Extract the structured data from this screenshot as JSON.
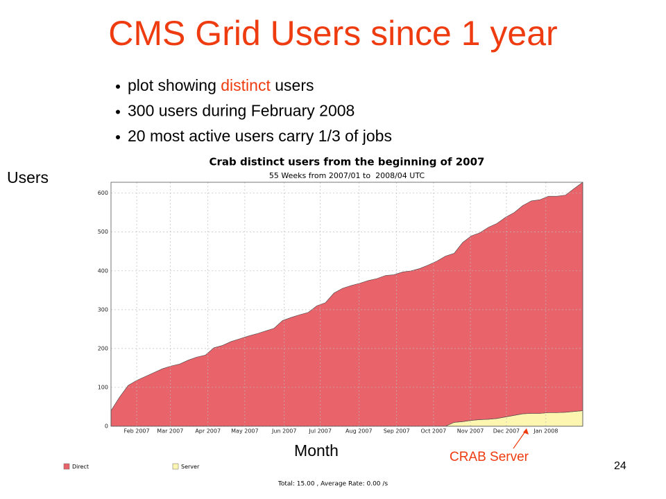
{
  "slide": {
    "title": "CMS Grid Users since 1 year",
    "bullets": [
      [
        "plot showing ",
        "distinct",
        " users"
      ],
      [
        "300 users during February 2008"
      ],
      [
        "20 most active users carry 1/3 of jobs"
      ]
    ],
    "y_caption": "Users",
    "x_caption": "Month",
    "annotation": "CRAB Server",
    "page_number": "24"
  },
  "chart_data": {
    "type": "stacked_area",
    "title": "Crab distinct users from the beginning of 2007",
    "subtitle": "55 Weeks from 2007/01 to  2008/04 UTC",
    "footer": "Total: 15.00 , Average Rate: 0.00 /s",
    "x": [
      0,
      1,
      2,
      3,
      4,
      5,
      6,
      7,
      8,
      9,
      10,
      11,
      12,
      13,
      14,
      15,
      16,
      17,
      18,
      19,
      20,
      21,
      22,
      23,
      24,
      25,
      26,
      27,
      28,
      29,
      30,
      31,
      32,
      33,
      34,
      35,
      36,
      37,
      38,
      39,
      40,
      41,
      42,
      43,
      44,
      45,
      46,
      47,
      48,
      49,
      50,
      51,
      52,
      53,
      54,
      55
    ],
    "xlim": [
      0,
      55
    ],
    "xticks": [
      {
        "value": 3.0,
        "label": "Feb 2007"
      },
      {
        "value": 6.9,
        "label": "Mar 2007"
      },
      {
        "value": 11.3,
        "label": "Apr 2007"
      },
      {
        "value": 15.6,
        "label": "May 2007"
      },
      {
        "value": 20.2,
        "label": "Jun 2007"
      },
      {
        "value": 24.4,
        "label": "Jul 2007"
      },
      {
        "value": 28.9,
        "label": "Aug 2007"
      },
      {
        "value": 33.3,
        "label": "Sep 2007"
      },
      {
        "value": 37.6,
        "label": "Oct 2007"
      },
      {
        "value": 41.9,
        "label": "Nov 2007"
      },
      {
        "value": 46.1,
        "label": "Dec 2007"
      },
      {
        "value": 50.7,
        "label": "Jan 2008"
      }
    ],
    "ylim": [
      0,
      628
    ],
    "yticks": [
      0,
      100,
      200,
      300,
      400,
      500,
      600
    ],
    "grid": true,
    "series": [
      {
        "name": "Server",
        "color": "#fdf6b0",
        "values": [
          0,
          0,
          0,
          0,
          0,
          0,
          0,
          0,
          0,
          0,
          0,
          0,
          0,
          0,
          0,
          0,
          0,
          0,
          0,
          0,
          0,
          0,
          0,
          0,
          0,
          0,
          0,
          0,
          0,
          0,
          0,
          0,
          0,
          0,
          0,
          0,
          0,
          0,
          0,
          0,
          10,
          12,
          15,
          17,
          18,
          20,
          24,
          28,
          32,
          33,
          33,
          35,
          35,
          36,
          38,
          40
        ]
      },
      {
        "name": "Direct",
        "color": "#e8636a",
        "values": [
          40,
          75,
          105,
          118,
          128,
          138,
          148,
          155,
          160,
          170,
          178,
          183,
          202,
          208,
          218,
          225,
          232,
          238,
          245,
          252,
          272,
          280,
          287,
          293,
          310,
          318,
          343,
          355,
          362,
          368,
          375,
          380,
          388,
          390,
          397,
          400,
          406,
          415,
          425,
          438,
          435,
          461,
          475,
          481,
          494,
          502,
          514,
          522,
          536,
          547,
          550,
          557,
          557,
          559,
          574,
          588
        ]
      }
    ]
  }
}
